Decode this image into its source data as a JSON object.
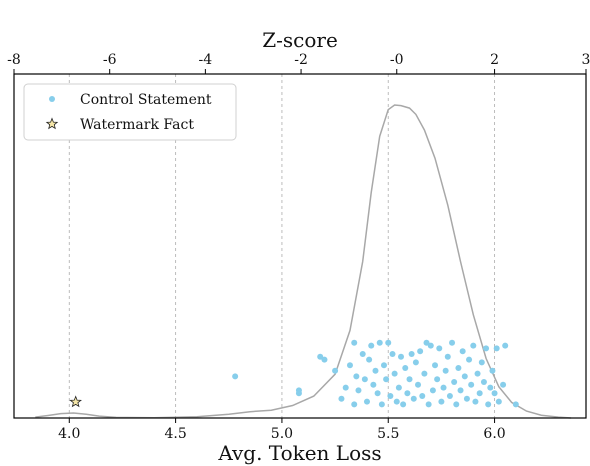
{
  "chart_data": {
    "type": "scatter",
    "xlabel": "Avg. Token Loss",
    "x2label": "Z-score",
    "xlim": [
      3.74,
      6.43
    ],
    "xticks": [
      4.0,
      4.5,
      5.0,
      5.5,
      6.0
    ],
    "xtick_labels": [
      "4.0",
      "4.5",
      "5.0",
      "5.5",
      "6.0"
    ],
    "z_ticks": [
      -8,
      -6,
      -4,
      -2,
      0,
      2,
      3
    ],
    "z_tick_labels": [
      "-8",
      "-6",
      "-4",
      "-2",
      "-0",
      "2",
      "3"
    ],
    "z_tick_positions": [
      3.74,
      4.19,
      4.64,
      5.09,
      5.54,
      6.0,
      6.43
    ],
    "grid": "x-dashed",
    "legend_position": "top-left",
    "legend": [
      "Control Statement",
      "Watermark Fact"
    ],
    "colors": {
      "control": "#87ceeb",
      "watermark": "#f5e6a8",
      "kde": "#a8a8a8",
      "grid": "#b5b5b5"
    },
    "series": [
      {
        "name": "Control Statement",
        "marker": "circle",
        "points": [
          [
            4.78,
            0.12
          ],
          [
            5.08,
            0.07
          ],
          [
            5.08,
            0.06
          ],
          [
            5.18,
            0.19
          ],
          [
            5.2,
            0.18
          ],
          [
            5.25,
            0.14
          ],
          [
            5.28,
            0.04
          ],
          [
            5.3,
            0.08
          ],
          [
            5.32,
            0.16
          ],
          [
            5.34,
            0.02
          ],
          [
            5.34,
            0.24
          ],
          [
            5.35,
            0.12
          ],
          [
            5.36,
            0.07
          ],
          [
            5.38,
            0.2
          ],
          [
            5.39,
            0.11
          ],
          [
            5.4,
            0.03
          ],
          [
            5.41,
            0.18
          ],
          [
            5.42,
            0.23
          ],
          [
            5.43,
            0.09
          ],
          [
            5.44,
            0.14
          ],
          [
            5.45,
            0.06
          ],
          [
            5.46,
            0.24
          ],
          [
            5.47,
            0.02
          ],
          [
            5.48,
            0.16
          ],
          [
            5.49,
            0.11
          ],
          [
            5.5,
            0.24
          ],
          [
            5.51,
            0.05
          ],
          [
            5.52,
            0.2
          ],
          [
            5.53,
            0.13
          ],
          [
            5.54,
            0.03
          ],
          [
            5.55,
            0.08
          ],
          [
            5.56,
            0.19
          ],
          [
            5.57,
            0.02
          ],
          [
            5.58,
            0.15
          ],
          [
            5.59,
            0.06
          ],
          [
            5.6,
            0.11
          ],
          [
            5.61,
            0.2
          ],
          [
            5.62,
            0.04
          ],
          [
            5.63,
            0.17
          ],
          [
            5.64,
            0.09
          ],
          [
            5.65,
            0.21
          ],
          [
            5.66,
            0.05
          ],
          [
            5.67,
            0.13
          ],
          [
            5.68,
            0.24
          ],
          [
            5.69,
            0.02
          ],
          [
            5.7,
            0.23
          ],
          [
            5.71,
            0.07
          ],
          [
            5.72,
            0.16
          ],
          [
            5.73,
            0.11
          ],
          [
            5.74,
            0.22
          ],
          [
            5.75,
            0.03
          ],
          [
            5.76,
            0.08
          ],
          [
            5.77,
            0.14
          ],
          [
            5.78,
            0.19
          ],
          [
            5.79,
            0.05
          ],
          [
            5.8,
            0.24
          ],
          [
            5.81,
            0.1
          ],
          [
            5.82,
            0.02
          ],
          [
            5.83,
            0.15
          ],
          [
            5.84,
            0.07
          ],
          [
            5.85,
            0.21
          ],
          [
            5.86,
            0.12
          ],
          [
            5.87,
            0.04
          ],
          [
            5.88,
            0.18
          ],
          [
            5.89,
            0.09
          ],
          [
            5.9,
            0.23
          ],
          [
            5.91,
            0.03
          ],
          [
            5.92,
            0.13
          ],
          [
            5.93,
            0.06
          ],
          [
            5.94,
            0.17
          ],
          [
            5.95,
            0.1
          ],
          [
            5.96,
            0.22
          ],
          [
            5.97,
            0.02
          ],
          [
            5.98,
            0.08
          ],
          [
            5.99,
            0.14
          ],
          [
            6.0,
            0.06
          ],
          [
            6.01,
            0.22
          ],
          [
            6.02,
            0.03
          ],
          [
            6.04,
            0.09
          ],
          [
            6.05,
            0.23
          ],
          [
            6.1,
            0.02
          ]
        ]
      },
      {
        "name": "Watermark Fact",
        "marker": "star",
        "points": [
          [
            4.03,
            0.06
          ]
        ]
      }
    ],
    "kde": [
      [
        3.84,
        0.003
      ],
      [
        3.9,
        0.008
      ],
      [
        3.96,
        0.014
      ],
      [
        4.02,
        0.016
      ],
      [
        4.08,
        0.012
      ],
      [
        4.14,
        0.006
      ],
      [
        4.22,
        0.002
      ],
      [
        4.4,
        0.001
      ],
      [
        4.6,
        0.004
      ],
      [
        4.75,
        0.012
      ],
      [
        4.85,
        0.02
      ],
      [
        4.95,
        0.025
      ],
      [
        5.05,
        0.04
      ],
      [
        5.15,
        0.07
      ],
      [
        5.25,
        0.14
      ],
      [
        5.32,
        0.28
      ],
      [
        5.38,
        0.5
      ],
      [
        5.42,
        0.72
      ],
      [
        5.46,
        0.9
      ],
      [
        5.5,
        0.985
      ],
      [
        5.53,
        1.0
      ],
      [
        5.56,
        0.998
      ],
      [
        5.6,
        0.99
      ],
      [
        5.63,
        0.97
      ],
      [
        5.67,
        0.92
      ],
      [
        5.72,
        0.83
      ],
      [
        5.78,
        0.68
      ],
      [
        5.84,
        0.5
      ],
      [
        5.9,
        0.33
      ],
      [
        5.96,
        0.19
      ],
      [
        6.02,
        0.1
      ],
      [
        6.08,
        0.05
      ],
      [
        6.15,
        0.022
      ],
      [
        6.22,
        0.009
      ],
      [
        6.3,
        0.003
      ],
      [
        6.36,
        0.0
      ]
    ]
  }
}
